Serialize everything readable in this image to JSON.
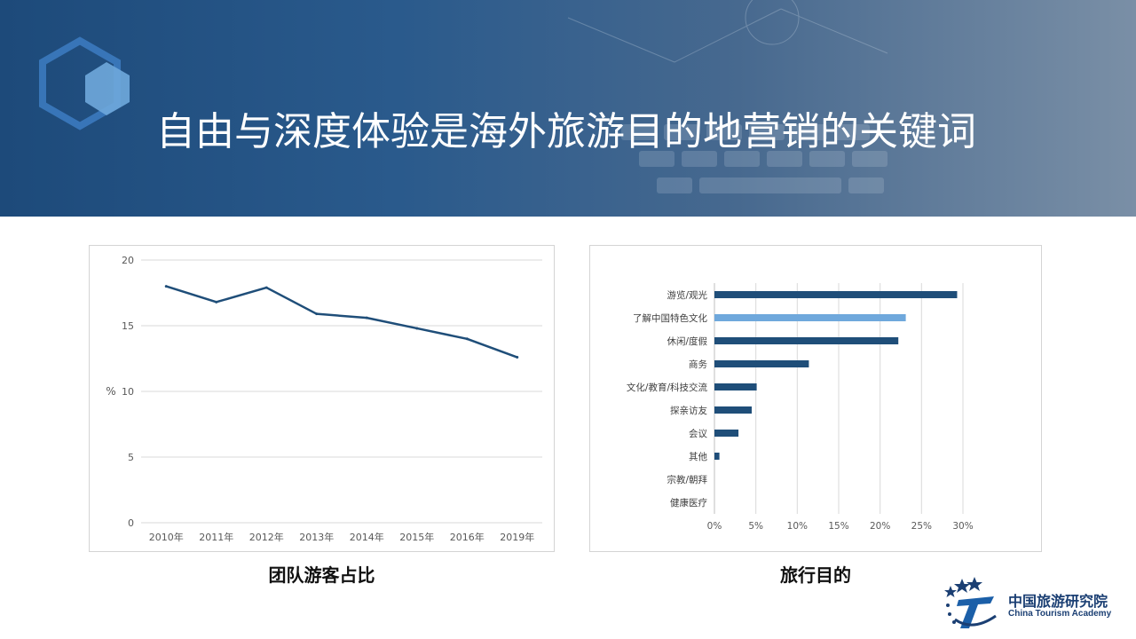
{
  "banner": {
    "title": "自由与深度体验是海外旅游目的地营销的关键词"
  },
  "colors": {
    "banner": "#1d4a7a",
    "line": "#1f4e79",
    "bar": "#1f4e79",
    "bar_highlight": "#6fa8dc"
  },
  "chart_data": [
    {
      "type": "line",
      "title": "",
      "caption": "团队游客占比",
      "xlabel": "",
      "ylabel": "%",
      "categories": [
        "2010年",
        "2011年",
        "2012年",
        "2013年",
        "2014年",
        "2015年",
        "2016年",
        "2019年"
      ],
      "values": [
        18.0,
        16.8,
        17.9,
        15.9,
        15.6,
        14.8,
        14.0,
        12.6
      ],
      "ylim": [
        0,
        20
      ],
      "yticks": [
        "0",
        "5",
        "10",
        "15",
        "20"
      ],
      "grid": true
    },
    {
      "type": "bar",
      "orientation": "horizontal",
      "title": "",
      "caption": "旅行目的",
      "categories": [
        "游览/观光",
        "了解中国特色文化",
        "休闲/度假",
        "商务",
        "文化/教育/科技交流",
        "探亲访友",
        "会议",
        "其他",
        "宗教/朝拜",
        "健康医疗"
      ],
      "values": [
        29.3,
        23.1,
        22.2,
        11.4,
        5.1,
        4.5,
        2.9,
        0.6,
        0,
        0
      ],
      "highlight_index": 1,
      "xlim": [
        0,
        30
      ],
      "xticks": [
        "0%",
        "5%",
        "10%",
        "15%",
        "20%",
        "25%",
        "30%"
      ],
      "grid": true
    }
  ],
  "logo": {
    "cn": "中国旅游研究院",
    "en": "China Tourism Academy"
  }
}
